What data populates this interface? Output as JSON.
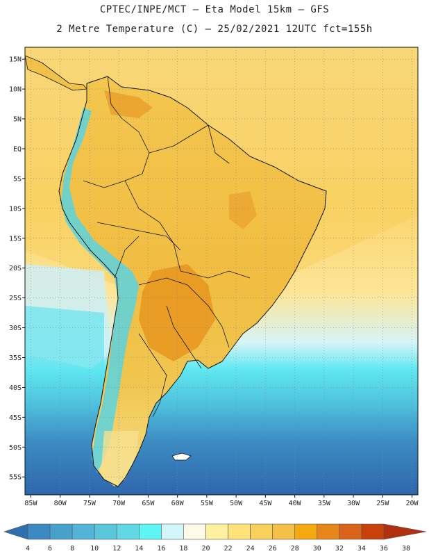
{
  "title_line1": "CPTEC/INPE/MCT –  Eta Model 15km – GFS",
  "title_line2": "2 Metre Temperature (C) – 25/02/2021 12UTC fct=155h",
  "lat_labels": [
    "15N",
    "10N",
    "5N",
    "EQ",
    "5S",
    "10S",
    "15S",
    "20S",
    "25S",
    "30S",
    "35S",
    "40S",
    "45S",
    "50S",
    "55S"
  ],
  "lon_labels": [
    "85W",
    "80W",
    "75W",
    "70W",
    "65W",
    "60W",
    "55W",
    "50W",
    "45W",
    "40W",
    "35W",
    "30W",
    "25W",
    "20W"
  ],
  "colorbar": {
    "labels": [
      "4",
      "6",
      "8",
      "10",
      "12",
      "14",
      "16",
      "18",
      "20",
      "22",
      "24",
      "26",
      "28",
      "30",
      "32",
      "34",
      "36",
      "38"
    ],
    "colors": [
      "#2e6fb0",
      "#3c88c2",
      "#48a0cc",
      "#52b4d8",
      "#5ac6dc",
      "#62d8e6",
      "#5ff5f5",
      "#d2f6fa",
      "#fffae8",
      "#fff1a0",
      "#ffe27a",
      "#f9d05c",
      "#f4c048",
      "#f2aa10",
      "#e6861a",
      "#db641c",
      "#c8400a",
      "#b03010"
    ]
  },
  "region_colors": {
    "ocean_north": "#fbdc7a",
    "ocean_south_far": "#2e6fb0",
    "land": "#f1c24a",
    "hot_land": "#e8961e",
    "andes": "#5ad4e0"
  }
}
